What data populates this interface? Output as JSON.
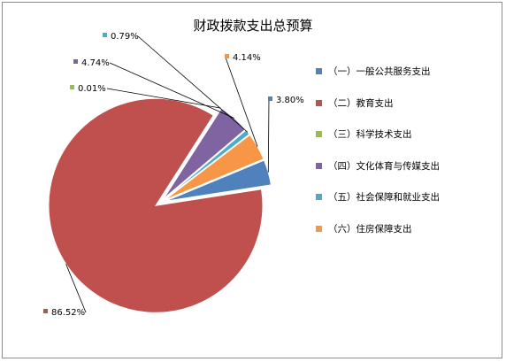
{
  "chart_data": {
    "type": "pie",
    "title": "财政拨款支出总预算",
    "categories": [
      "（一）一般公共服务支出",
      "（二）教育支出",
      "（三）科学技术支出",
      "（四）文化体育与传媒支出",
      "（五）社会保障和就业支出",
      "（六）住房保障支出"
    ],
    "values": [
      3.8,
      86.52,
      0.01,
      4.74,
      0.79,
      4.14
    ],
    "data_labels": [
      "3.80%",
      "86.52%",
      "0.01%",
      "4.74%",
      "0.79%",
      "4.14%"
    ],
    "colors": [
      "#4f81bd",
      "#c0504d",
      "#9bbb59",
      "#8064a2",
      "#4bacc6",
      "#f79646"
    ],
    "exploded": true,
    "legend_position": "right"
  }
}
